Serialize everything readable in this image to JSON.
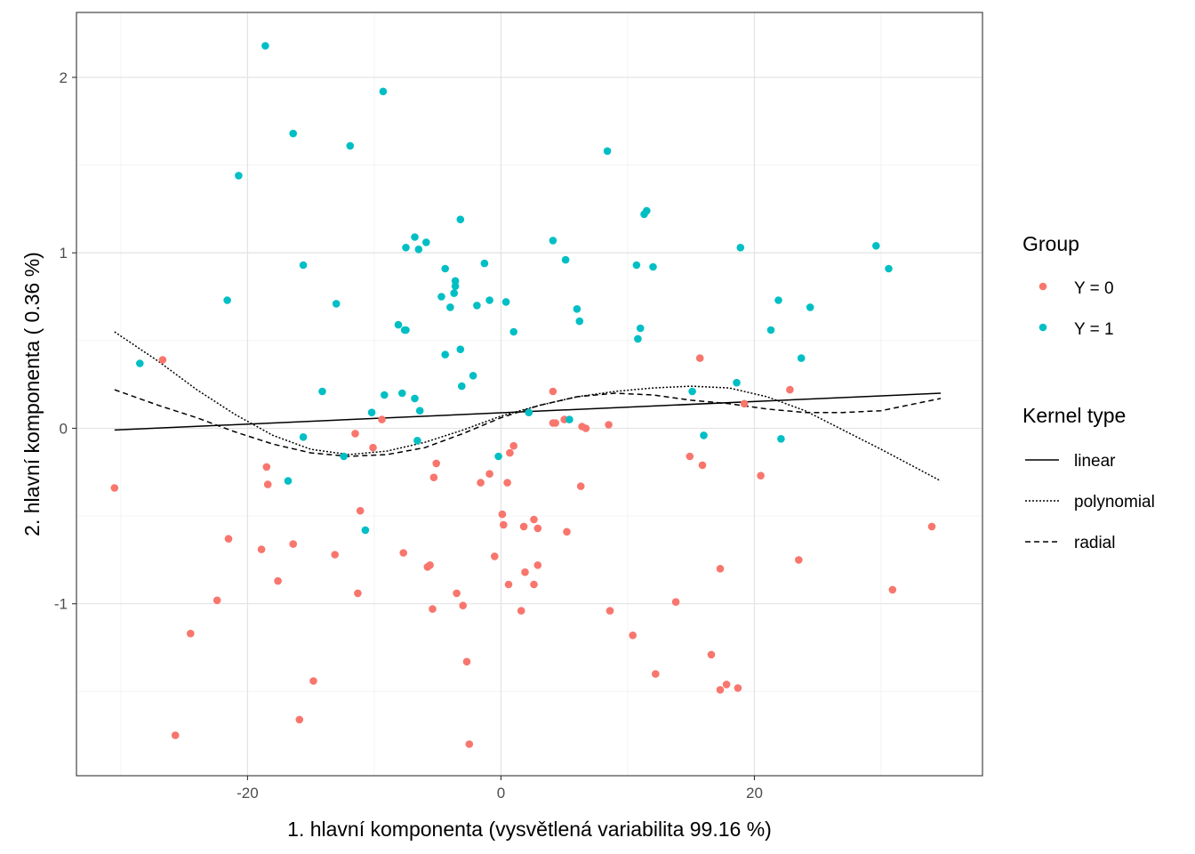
{
  "chart_data": {
    "type": "scatter",
    "xlabel": "1. hlavní komponenta (vysvětlená variabilita 99.16 %)",
    "ylabel": "2. hlavní komponenta ( 0.36 %)",
    "xlim": [
      -33.5,
      38
    ],
    "ylim": [
      -1.98,
      2.37
    ],
    "x_ticks": [
      -20,
      0,
      20
    ],
    "x_tick_labels": [
      "-20",
      "0",
      "20"
    ],
    "y_ticks": [
      -1,
      0,
      1,
      2
    ],
    "y_tick_labels": [
      "-1",
      "0",
      "1",
      "2"
    ],
    "grid": true,
    "legend_position": "right",
    "legend_group": {
      "title": "Group",
      "entries": [
        {
          "label": "Y = 0",
          "color": "#F8766D"
        },
        {
          "label": "Y = 1",
          "color": "#00BFC4"
        }
      ]
    },
    "legend_kernel": {
      "title": "Kernel type",
      "entries": [
        {
          "label": "linear",
          "dash": "solid"
        },
        {
          "label": "polynomial",
          "dash": "dotted"
        },
        {
          "label": "radial",
          "dash": "dashed"
        }
      ]
    },
    "series": [
      {
        "name": "Y = 0",
        "color": "#F8766D",
        "points": [
          [
            -30.5,
            -0.34
          ],
          [
            -26.7,
            0.39
          ],
          [
            -25.7,
            -1.75
          ],
          [
            -24.5,
            -1.17
          ],
          [
            -22.4,
            -0.98
          ],
          [
            -21.5,
            -0.63
          ],
          [
            -18.9,
            -0.69
          ],
          [
            -18.5,
            -0.22
          ],
          [
            -18.4,
            -0.32
          ],
          [
            -17.6,
            -0.87
          ],
          [
            -16.4,
            -0.66
          ],
          [
            -15.9,
            -1.66
          ],
          [
            -14.8,
            -1.44
          ],
          [
            -13.1,
            -0.72
          ],
          [
            -11.5,
            -0.03
          ],
          [
            -11.3,
            -0.94
          ],
          [
            -11.1,
            -0.47
          ],
          [
            -10.1,
            -0.11
          ],
          [
            -9.4,
            0.05
          ],
          [
            -7.7,
            -0.71
          ],
          [
            -5.8,
            -0.79
          ],
          [
            -5.6,
            -0.78
          ],
          [
            -5.4,
            -1.03
          ],
          [
            -5.3,
            -0.28
          ],
          [
            -5.1,
            -0.2
          ],
          [
            -3.5,
            -0.94
          ],
          [
            -3.0,
            -1.01
          ],
          [
            -2.7,
            -1.33
          ],
          [
            -2.5,
            -1.8
          ],
          [
            -1.6,
            -0.31
          ],
          [
            -0.9,
            -0.26
          ],
          [
            -0.5,
            -0.73
          ],
          [
            0.1,
            -0.49
          ],
          [
            0.2,
            -0.55
          ],
          [
            0.5,
            -0.31
          ],
          [
            0.6,
            -0.89
          ],
          [
            0.7,
            -0.14
          ],
          [
            1.0,
            -0.1
          ],
          [
            1.6,
            -1.04
          ],
          [
            1.8,
            -0.56
          ],
          [
            1.9,
            -0.82
          ],
          [
            2.6,
            -0.52
          ],
          [
            2.6,
            -0.89
          ],
          [
            2.9,
            -0.57
          ],
          [
            2.9,
            -0.78
          ],
          [
            4.1,
            0.21
          ],
          [
            4.1,
            0.03
          ],
          [
            4.3,
            0.03
          ],
          [
            5.0,
            0.05
          ],
          [
            5.2,
            -0.59
          ],
          [
            6.3,
            -0.33
          ],
          [
            6.4,
            0.01
          ],
          [
            6.7,
            0.0
          ],
          [
            8.5,
            0.02
          ],
          [
            8.6,
            -1.04
          ],
          [
            10.4,
            -1.18
          ],
          [
            12.2,
            -1.4
          ],
          [
            13.8,
            -0.99
          ],
          [
            14.9,
            -0.16
          ],
          [
            15.7,
            0.4
          ],
          [
            15.9,
            -0.21
          ],
          [
            16.6,
            -1.29
          ],
          [
            17.3,
            -0.8
          ],
          [
            17.3,
            -1.49
          ],
          [
            17.8,
            -1.46
          ],
          [
            18.7,
            -1.48
          ],
          [
            19.2,
            0.14
          ],
          [
            20.5,
            -0.27
          ],
          [
            22.8,
            0.22
          ],
          [
            23.5,
            -0.75
          ],
          [
            30.9,
            -0.92
          ],
          [
            34.0,
            -0.56
          ]
        ]
      },
      {
        "name": "Y = 1",
        "color": "#00BFC4",
        "points": [
          [
            -28.5,
            0.37
          ],
          [
            -21.6,
            0.73
          ],
          [
            -20.7,
            1.44
          ],
          [
            -18.6,
            2.18
          ],
          [
            -16.8,
            -0.3
          ],
          [
            -16.4,
            1.68
          ],
          [
            -15.6,
            0.93
          ],
          [
            -15.6,
            -0.05
          ],
          [
            -14.1,
            0.21
          ],
          [
            -13.0,
            0.71
          ],
          [
            -12.4,
            -0.16
          ],
          [
            -11.9,
            1.61
          ],
          [
            -10.7,
            -0.58
          ],
          [
            -10.2,
            0.09
          ],
          [
            -9.3,
            1.92
          ],
          [
            -9.2,
            0.19
          ],
          [
            -8.1,
            0.59
          ],
          [
            -7.8,
            0.2
          ],
          [
            -7.6,
            0.56
          ],
          [
            -7.5,
            0.56
          ],
          [
            -7.5,
            1.03
          ],
          [
            -6.8,
            1.09
          ],
          [
            -6.8,
            0.17
          ],
          [
            -6.6,
            -0.07
          ],
          [
            -6.5,
            1.02
          ],
          [
            -6.4,
            0.1
          ],
          [
            -5.9,
            1.06
          ],
          [
            -4.7,
            0.75
          ],
          [
            -4.4,
            0.42
          ],
          [
            -4.4,
            0.91
          ],
          [
            -4.0,
            0.69
          ],
          [
            -3.7,
            0.77
          ],
          [
            -3.6,
            0.81
          ],
          [
            -3.6,
            0.84
          ],
          [
            -3.2,
            0.45
          ],
          [
            -3.2,
            1.19
          ],
          [
            -3.1,
            0.24
          ],
          [
            -2.2,
            0.3
          ],
          [
            -1.9,
            0.7
          ],
          [
            -1.3,
            0.94
          ],
          [
            -0.9,
            0.73
          ],
          [
            -0.2,
            -0.16
          ],
          [
            0.4,
            0.72
          ],
          [
            1.0,
            0.55
          ],
          [
            2.2,
            0.09
          ],
          [
            4.1,
            1.07
          ],
          [
            5.1,
            0.96
          ],
          [
            5.4,
            0.05
          ],
          [
            6.0,
            0.68
          ],
          [
            6.2,
            0.61
          ],
          [
            8.4,
            1.58
          ],
          [
            10.7,
            0.93
          ],
          [
            10.8,
            0.51
          ],
          [
            11.0,
            0.57
          ],
          [
            11.3,
            1.22
          ],
          [
            11.5,
            1.24
          ],
          [
            12.0,
            0.92
          ],
          [
            15.1,
            0.21
          ],
          [
            16.0,
            -0.04
          ],
          [
            18.6,
            0.26
          ],
          [
            18.9,
            1.03
          ],
          [
            21.3,
            0.56
          ],
          [
            21.9,
            0.73
          ],
          [
            22.1,
            -0.06
          ],
          [
            23.7,
            0.4
          ],
          [
            24.4,
            0.69
          ],
          [
            29.6,
            1.04
          ],
          [
            30.6,
            0.91
          ]
        ]
      }
    ],
    "lines": [
      {
        "name": "linear",
        "dash": "solid",
        "x": [
          -30.5,
          34.7
        ],
        "y": [
          -0.01,
          0.2
        ]
      },
      {
        "name": "polynomial",
        "dash": "dotted",
        "x": [
          -30.5,
          -27,
          -24,
          -21,
          -18,
          -15,
          -12,
          -9,
          -6,
          -3,
          0,
          3,
          6,
          9,
          12,
          15,
          18,
          21,
          24,
          27,
          30,
          34.7
        ],
        "y": [
          0.55,
          0.38,
          0.22,
          0.08,
          -0.04,
          -0.12,
          -0.15,
          -0.13,
          -0.08,
          -0.01,
          0.07,
          0.13,
          0.18,
          0.21,
          0.23,
          0.24,
          0.23,
          0.18,
          0.1,
          -0.01,
          -0.12,
          -0.3
        ]
      },
      {
        "name": "radial",
        "dash": "dashed",
        "x": [
          -30.5,
          -27,
          -24,
          -21,
          -18,
          -15,
          -12,
          -9,
          -6,
          -3,
          0,
          3,
          6,
          9,
          12,
          15,
          18,
          21,
          24,
          27,
          30,
          34.7
        ],
        "y": [
          0.22,
          0.13,
          0.06,
          -0.02,
          -0.09,
          -0.14,
          -0.16,
          -0.15,
          -0.11,
          -0.03,
          0.06,
          0.13,
          0.18,
          0.2,
          0.19,
          0.16,
          0.14,
          0.11,
          0.09,
          0.09,
          0.1,
          0.17
        ]
      }
    ]
  }
}
